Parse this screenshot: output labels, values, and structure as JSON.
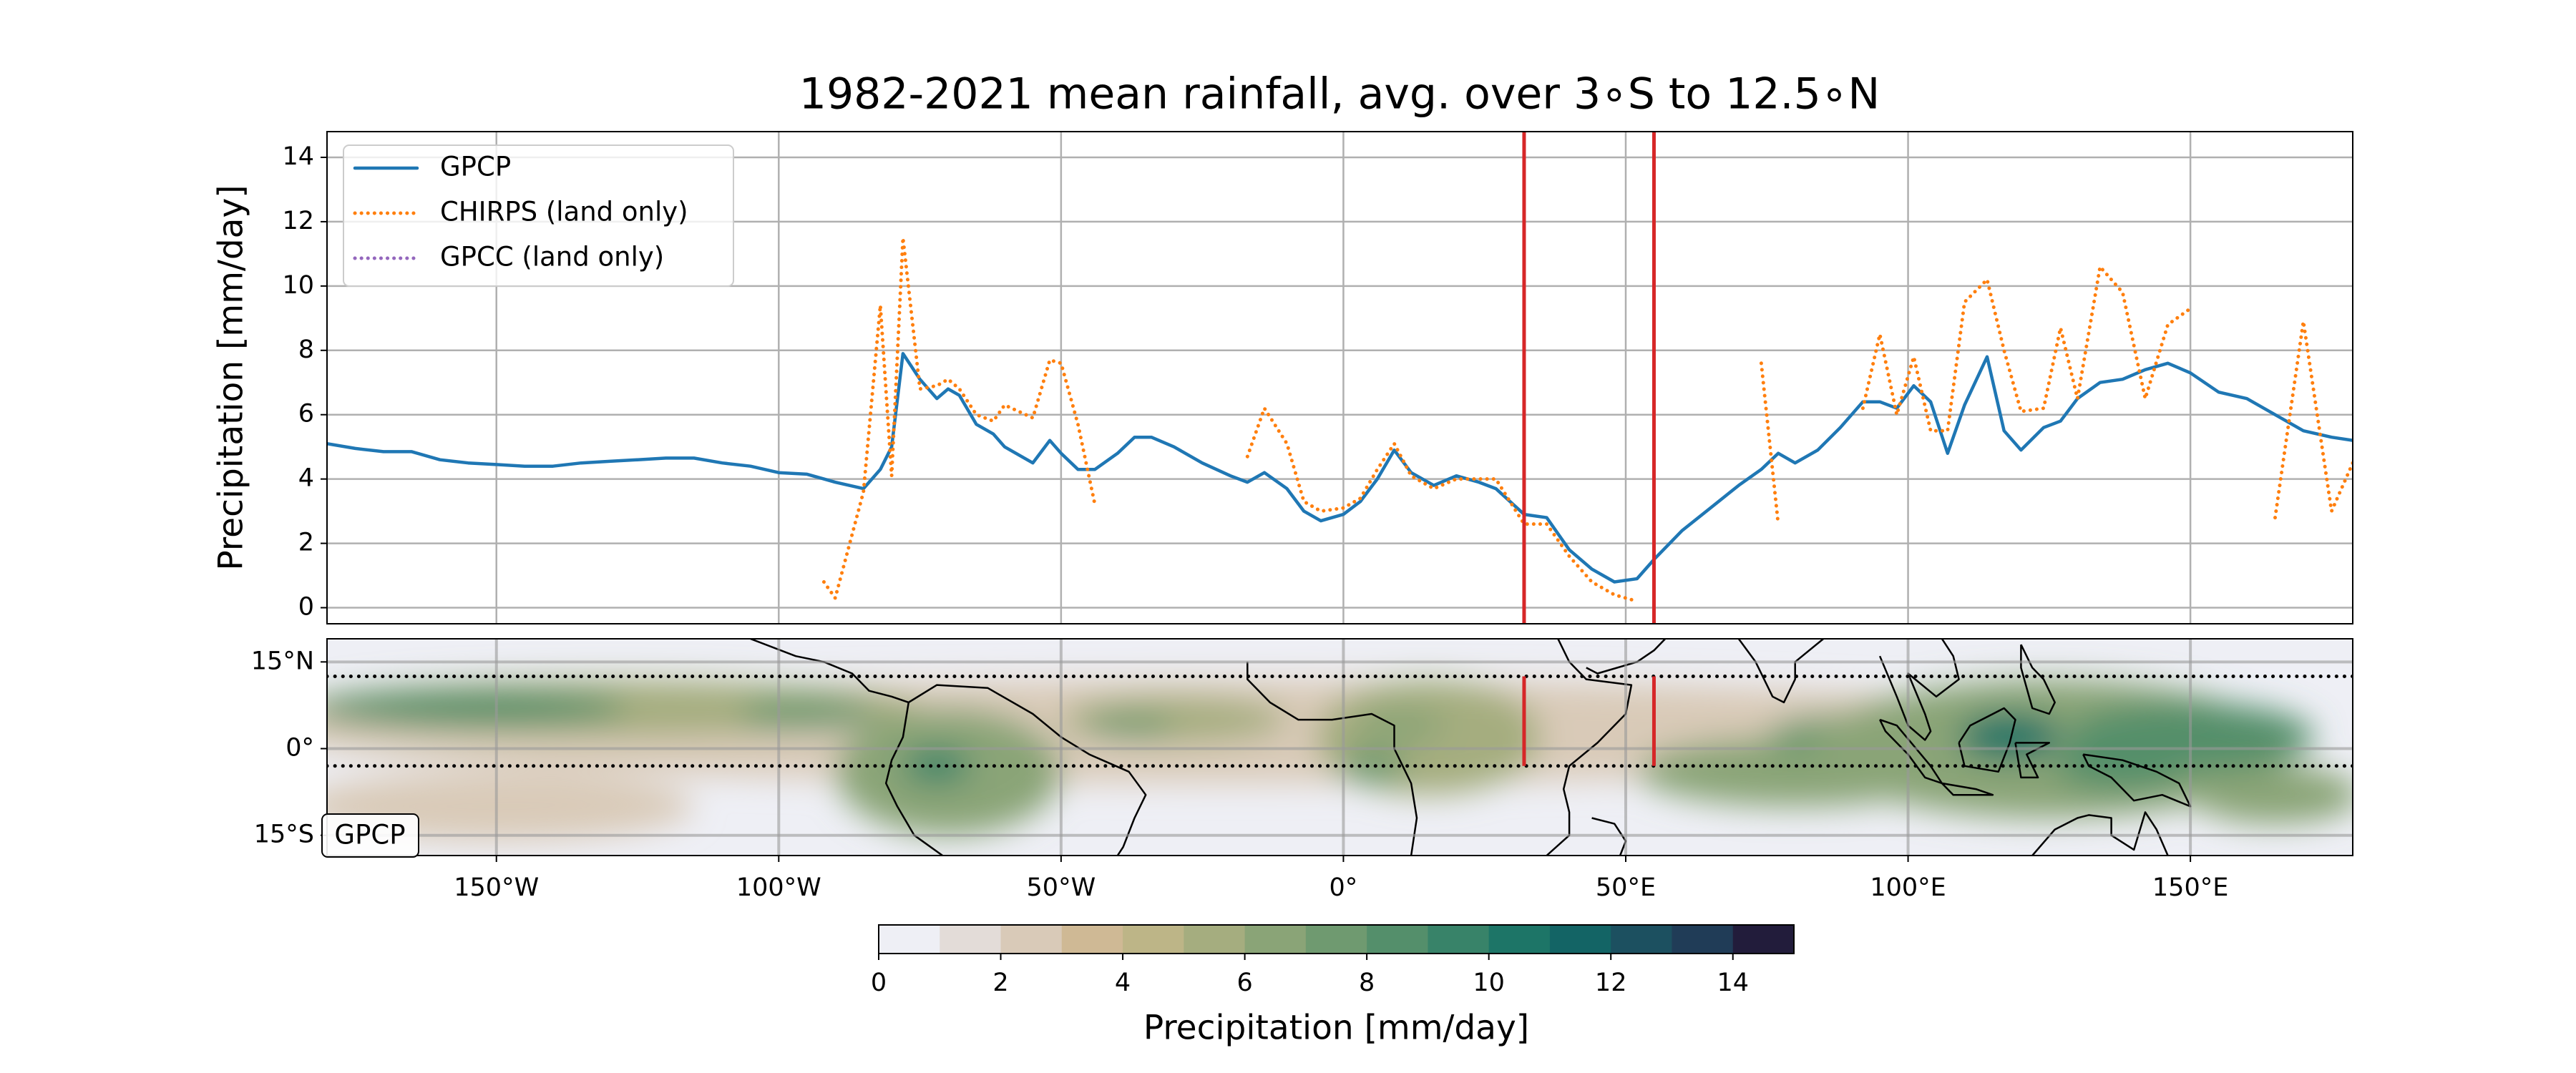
{
  "chart_data": [
    {
      "type": "line",
      "title": "1982-2021 mean rainfall, avg. over 3$^\\circ$S to 12.5$^\\circ$N",
      "title_text": "1982-2021 mean rainfall, avg. over 3∘S to 12.5∘N",
      "y_label": "Precipitation [mm/day]",
      "xlim": [
        -180,
        178.75
      ],
      "ylim": [
        -0.5,
        14.8
      ],
      "yticks": [
        0,
        2,
        4,
        6,
        8,
        10,
        12,
        14
      ],
      "grid": true,
      "legend": "upper left",
      "vlines": [
        32,
        55
      ],
      "vline_color": "#d62728",
      "x": [
        -180,
        -175,
        -170,
        -165,
        -160,
        -155,
        -150,
        -145,
        -140,
        -135,
        -130,
        -125,
        -120,
        -115,
        -110,
        -105,
        -100,
        -95,
        -92,
        -90,
        -85,
        -82,
        -80,
        -78,
        -75,
        -72,
        -70,
        -68,
        -65,
        -62,
        -60,
        -55,
        -52,
        -50,
        -47,
        -44,
        -40,
        -37,
        -34,
        -30,
        -25,
        -20,
        -17,
        -14,
        -10,
        -7,
        -4,
        0,
        3,
        6,
        9,
        12,
        16,
        20,
        24,
        27,
        32,
        36,
        40,
        44,
        48,
        52,
        55,
        60,
        65,
        70,
        74,
        77,
        80,
        84,
        88,
        92,
        95,
        98,
        101,
        104,
        107,
        110,
        114,
        117,
        120,
        124,
        127,
        130,
        134,
        138,
        142,
        146,
        150,
        155,
        160,
        165,
        170,
        175,
        178.75
      ],
      "series": [
        {
          "name": "GPCP",
          "color": "#1f77b4",
          "style": "solid",
          "values": [
            5.1,
            4.95,
            4.85,
            4.85,
            4.6,
            4.5,
            4.45,
            4.4,
            4.4,
            4.5,
            4.55,
            4.6,
            4.65,
            4.65,
            4.5,
            4.4,
            4.2,
            4.15,
            4.0,
            3.9,
            3.7,
            4.3,
            5.0,
            7.9,
            7.1,
            6.5,
            6.8,
            6.6,
            5.7,
            5.4,
            5.0,
            4.5,
            5.2,
            4.8,
            4.3,
            4.3,
            4.8,
            5.3,
            5.3,
            5.0,
            4.5,
            4.1,
            3.9,
            4.2,
            3.7,
            3.0,
            2.7,
            2.9,
            3.3,
            4.0,
            4.9,
            4.2,
            3.8,
            4.1,
            3.9,
            3.7,
            2.9,
            2.8,
            1.8,
            1.2,
            0.8,
            0.9,
            1.5,
            2.4,
            3.1,
            3.8,
            4.3,
            4.8,
            4.5,
            4.9,
            5.6,
            6.4,
            6.4,
            6.2,
            6.9,
            6.4,
            4.8,
            6.3,
            7.8,
            5.5,
            4.9,
            5.6,
            5.8,
            6.5,
            7.0,
            7.1,
            7.4,
            7.6,
            7.3,
            6.7,
            6.5,
            6.0,
            5.5,
            5.3,
            5.2
          ]
        },
        {
          "name": "CHIRPS (land only)",
          "color": "#ff7f0e",
          "style": "dotted",
          "values": [
            null,
            null,
            null,
            null,
            null,
            null,
            null,
            null,
            null,
            null,
            null,
            null,
            null,
            null,
            null,
            null,
            null,
            null,
            0.8,
            0.3,
            3.6,
            9.4,
            4.1,
            11.5,
            6.8,
            6.9,
            7.1,
            6.8,
            6.0,
            5.8,
            6.3,
            5.9,
            7.7,
            7.6,
            5.7,
            3.2,
            null,
            null,
            null,
            null,
            null,
            null,
            4.7,
            6.2,
            5.1,
            3.3,
            3.0,
            3.1,
            3.4,
            4.3,
            5.1,
            4.1,
            3.7,
            4.0,
            4.0,
            4.0,
            2.6,
            2.6,
            1.6,
            0.8,
            0.4,
            0.2,
            null,
            null,
            null,
            null,
            7.6,
            2.6,
            null,
            null,
            null,
            6.2,
            8.5,
            6.0,
            7.8,
            5.5,
            5.5,
            9.5,
            10.2,
            8.0,
            6.1,
            6.2,
            8.7,
            6.5,
            10.6,
            9.8,
            6.5,
            8.8,
            9.3,
            null,
            null,
            2.8,
            8.9,
            3.0,
            4.5
          ]
        },
        {
          "name": "GPCC (land only)",
          "color": "#9467bd",
          "style": "dotted",
          "values": [
            null,
            null,
            null,
            null,
            null,
            null,
            null,
            null,
            null,
            null,
            null,
            null,
            null,
            null,
            null,
            null,
            null,
            null,
            null,
            null,
            null,
            null,
            null,
            null,
            null,
            null,
            null,
            null,
            null,
            null,
            null,
            null,
            null,
            null,
            null,
            null,
            null,
            null,
            null,
            null,
            null,
            null,
            null,
            null,
            null,
            null,
            null,
            null,
            null,
            null,
            null,
            null,
            null,
            null,
            null,
            null,
            null,
            null,
            null,
            null,
            null,
            null,
            null,
            null,
            null,
            null,
            null,
            null,
            null,
            null,
            null,
            null,
            null,
            null,
            null,
            null,
            null,
            null,
            null,
            null,
            null,
            null,
            null,
            null,
            null,
            null,
            null,
            null,
            null,
            null,
            null,
            null,
            null,
            null,
            null
          ]
        }
      ]
    },
    {
      "type": "map",
      "label": "GPCP",
      "xlim": [
        -180,
        178.75
      ],
      "ylim": [
        -18.5,
        19
      ],
      "xticks": [
        {
          "value": -150,
          "label": "150°W"
        },
        {
          "value": -100,
          "label": "100°W"
        },
        {
          "value": -50,
          "label": "50°W"
        },
        {
          "value": 0,
          "label": "0°"
        },
        {
          "value": 50,
          "label": "50°E"
        },
        {
          "value": 100,
          "label": "100°E"
        },
        {
          "value": 150,
          "label": "150°E"
        }
      ],
      "yticks": [
        {
          "value": 15,
          "label": "15°N"
        },
        {
          "value": 0,
          "label": "0°"
        },
        {
          "value": -15,
          "label": "15°S"
        }
      ],
      "grid": true,
      "band": [
        -3,
        12.5
      ],
      "vlines": [
        32,
        55
      ],
      "vline_color": "#d62728",
      "colorbar": {
        "label": "Precipitation [mm/day]",
        "lim": [
          0,
          15
        ],
        "ticks": [
          0,
          2,
          4,
          6,
          8,
          10,
          12,
          14
        ],
        "colors": [
          "#eeeff5",
          "#e3dcd8",
          "#d9cab8",
          "#cfb995",
          "#bdb587",
          "#a5ad7f",
          "#8aa477",
          "#6f9a70",
          "#548f6b",
          "#388369",
          "#1d7567",
          "#136465",
          "#1c5060",
          "#203c57",
          "#221c3b"
        ]
      }
    }
  ]
}
